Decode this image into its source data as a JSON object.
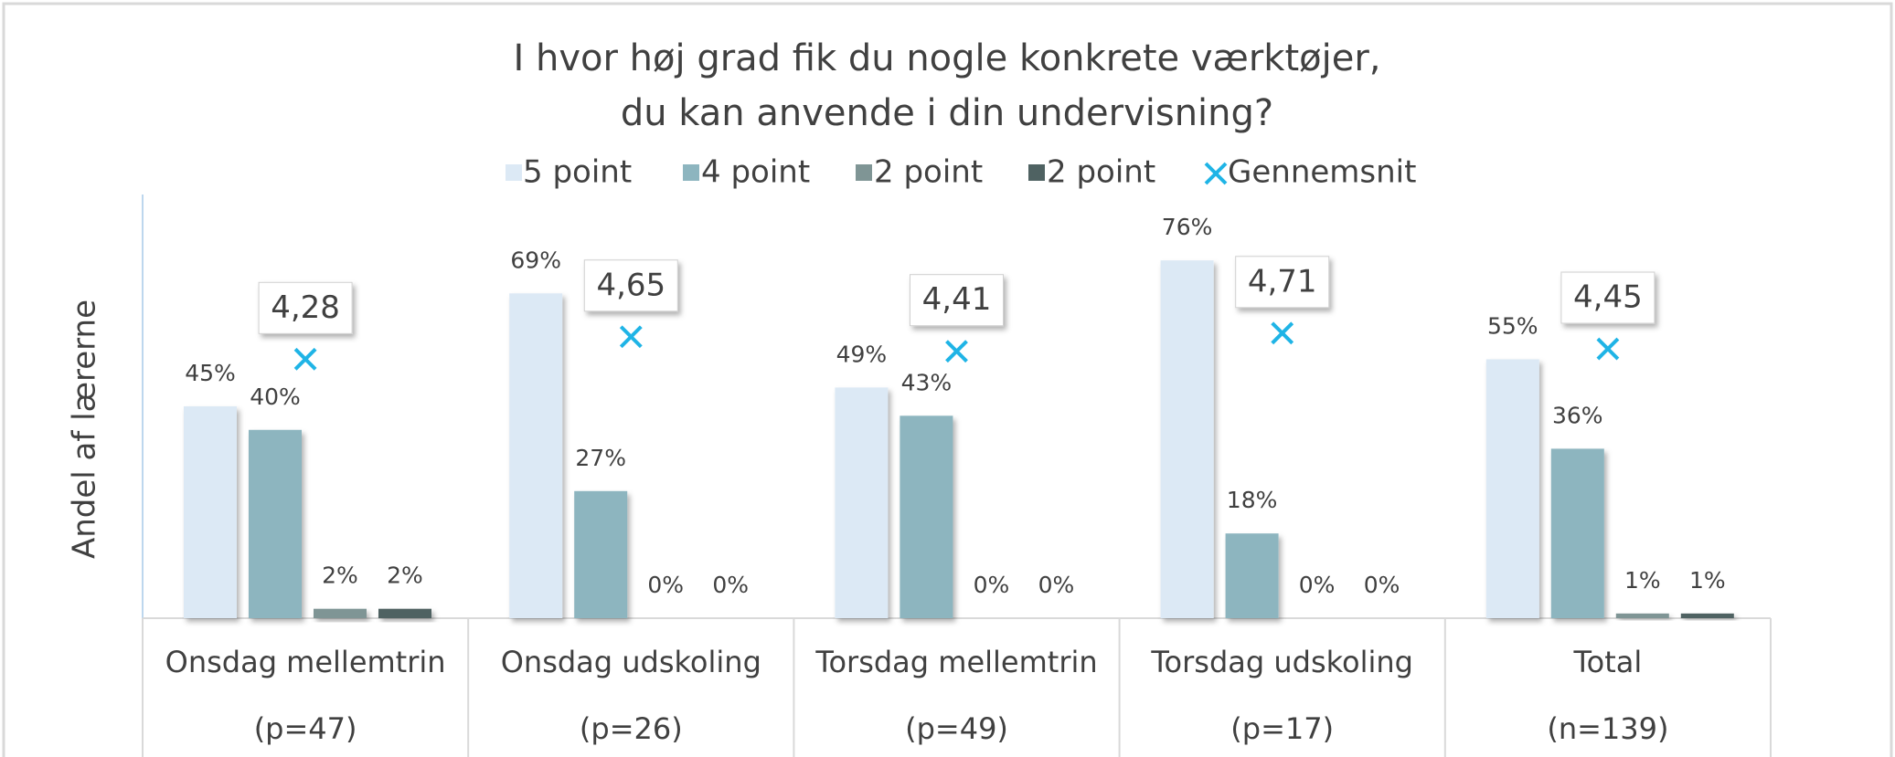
{
  "chart_data": {
    "type": "bar",
    "title": [
      "I hvor høj grad fik du nogle konkrete værktøjer,",
      "du kan anvende i din undervisning?"
    ],
    "y_axis_label": "Andel af lærerne",
    "categories": [
      "Onsdag mellemtrin",
      "Onsdag udskoling",
      "Torsdag mellemtrin",
      "Torsdag udskoling",
      "Total"
    ],
    "category_notes": [
      "(p=47)",
      "(p=26)",
      "(p=49)",
      "(p=17)",
      "(n=139)"
    ],
    "ylim": [
      0,
      90
    ],
    "y2lim": [
      0,
      7
    ],
    "series": [
      {
        "name": "5 point",
        "color": "#dce9f5",
        "values": [
          45,
          69,
          49,
          76,
          55
        ],
        "value_labels": [
          "45%",
          "69%",
          "49%",
          "76%",
          "55%"
        ]
      },
      {
        "name": "4 point",
        "color": "#8db5bf",
        "values": [
          40,
          27,
          43,
          18,
          36
        ],
        "value_labels": [
          "40%",
          "27%",
          "43%",
          "18%",
          "36%"
        ]
      },
      {
        "name": "2 point",
        "color": "#7f9595",
        "values": [
          2,
          0,
          0,
          0,
          1
        ],
        "value_labels": [
          "2%",
          "0%",
          "0%",
          "0%",
          "1%"
        ]
      },
      {
        "name": "2 point",
        "color": "#4f6262",
        "values": [
          2,
          0,
          0,
          0,
          1
        ],
        "value_labels": [
          "2%",
          "0%",
          "0%",
          "0%",
          "1%"
        ]
      },
      {
        "name": "Gennemsnit",
        "type": "scatter",
        "axis": "y2",
        "color": "#1fb4e6",
        "values": [
          4.28,
          4.65,
          4.41,
          4.71,
          4.45
        ],
        "value_labels": [
          "4,28",
          "4,65",
          "4,41",
          "4,71",
          "4,45"
        ]
      }
    ]
  }
}
